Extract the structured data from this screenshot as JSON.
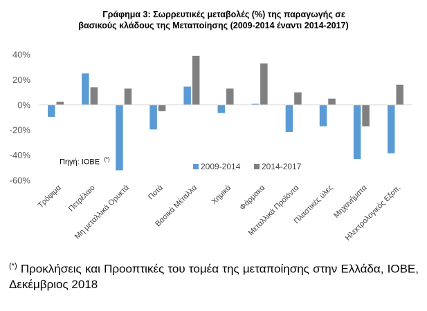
{
  "chart_data": {
    "type": "bar",
    "title_line1": "Γράφημα 3: Σωρρευτικές μεταβολές (%) της παραγωγής σε",
    "title_line2": "βασικούς κλάδους της Μεταποίησης (2009-2014 έναντι 2014-2017)",
    "categories": [
      "Τρόφιμα",
      "Πετρέλαιο",
      "Μη μεταλλικά Ορυκτά",
      "Ποτά",
      "Βασικά Μέταλλα",
      "Χημικά",
      "Φάρμακα",
      "Μεταλλικά Προϊόντα",
      "Πλαστικές ύλες",
      "Μηχανήματα",
      "Ηλεκτρολογικός Εξοπ."
    ],
    "series": [
      {
        "name": "2009-2014",
        "color": "#5b9bd5",
        "values": [
          -9.5,
          25,
          -52,
          -19.5,
          14.5,
          -6.5,
          1,
          -21.5,
          -17,
          -43,
          -38.5
        ]
      },
      {
        "name": "2014-2017",
        "color": "#808080",
        "values": [
          2.5,
          14,
          13,
          -5,
          39,
          13,
          33,
          10,
          5,
          -17,
          16
        ]
      }
    ],
    "ylim": [
      -60,
      40
    ],
    "yticks": [
      "40%",
      "20%",
      "0%",
      "-20%",
      "-40%",
      "-60%"
    ],
    "ytick_values": [
      40,
      20,
      0,
      -20,
      -40,
      -60
    ],
    "grid": false,
    "legend_position": "lower-center-inside"
  },
  "source": {
    "label": "Πηγή: ΙΟΒΕ",
    "marker": "(*)"
  },
  "footnote": {
    "marker": "(*)",
    "text": " Προκλήσεις και Προοπτικές του τομέα της μεταποίησης στην Ελλάδα, ΙΟΒΕ, Δεκέμβριος 2018"
  }
}
